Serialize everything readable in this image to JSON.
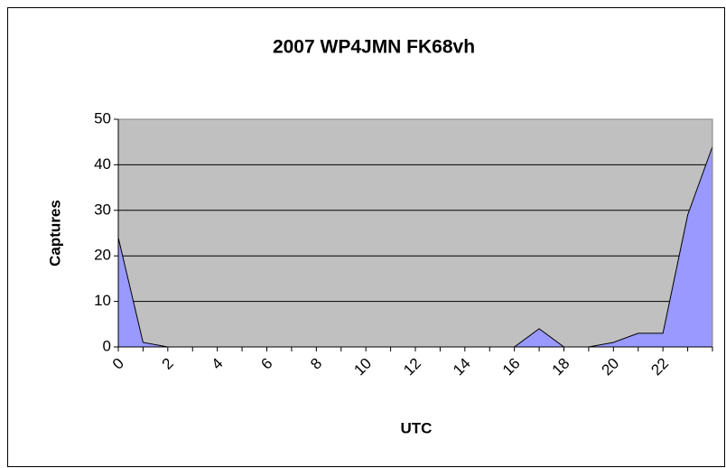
{
  "chart_data": {
    "type": "area",
    "title": "2007 WP4JMN FK68vh",
    "x_label": "UTC",
    "y_label": "Captures",
    "categories": [
      "0",
      null,
      "2",
      null,
      "4",
      null,
      "6",
      null,
      "8",
      null,
      "10",
      null,
      "12",
      null,
      "14",
      null,
      "16",
      null,
      "18",
      null,
      "20",
      null,
      "22",
      null,
      null
    ],
    "values": [
      24,
      1,
      0,
      0,
      0,
      0,
      0,
      0,
      0,
      0,
      0,
      0,
      0,
      0,
      0,
      0,
      0,
      4,
      0,
      0,
      1,
      3,
      3,
      29,
      44
    ],
    "color": "#9999ff",
    "background": "#c0c0c0",
    "ylim": [
      0,
      50
    ],
    "yticks": [
      0,
      10,
      20,
      30,
      40,
      50
    ],
    "grid": true
  }
}
